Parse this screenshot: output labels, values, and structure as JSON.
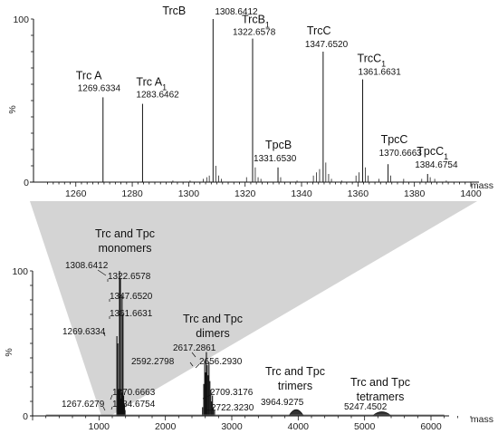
{
  "chart_data": [
    {
      "type": "line",
      "panel": "top",
      "x_unit_label": "mass",
      "y_unit_label": "%",
      "xlim": [
        1245,
        1400
      ],
      "ylim": [
        0,
        100
      ],
      "x_ticks": [
        "1260",
        "1280",
        "1300",
        "1320",
        "1340",
        "1360",
        "1380",
        "1400"
      ],
      "y_ticks": [
        "0",
        "100"
      ],
      "peaks": [
        {
          "name": "Trc A",
          "sub": "",
          "mz": 1269.6334,
          "mz_label": "1269.6334",
          "y": 52
        },
        {
          "name": "Trc A",
          "sub": "1",
          "mz": 1283.6462,
          "mz_label": "1283.6462",
          "y": 48
        },
        {
          "name": "TrcB",
          "sub": "",
          "mz": 1308.6412,
          "mz_label": "1308.6412",
          "y": 100
        },
        {
          "name": "TrcB",
          "sub": "1",
          "mz": 1322.6578,
          "mz_label": "1322.6578",
          "y": 88
        },
        {
          "name": "TpcB",
          "sub": "",
          "mz": 1331.653,
          "mz_label": "1331.6530",
          "y": 9
        },
        {
          "name": "TrcC",
          "sub": "",
          "mz": 1347.652,
          "mz_label": "1347.6520",
          "y": 80
        },
        {
          "name": "TrcC",
          "sub": "1",
          "mz": 1361.6631,
          "mz_label": "1361.6631",
          "y": 63
        },
        {
          "name": "TpcC",
          "sub": "",
          "mz": 1370.6663,
          "mz_label": "1370.6663",
          "y": 11
        },
        {
          "name": "TpcC",
          "sub": "1",
          "mz": 1384.6754,
          "mz_label": "1384.6754",
          "y": 5
        }
      ],
      "minor_peaks": [
        {
          "x": 1305.2,
          "y": 2
        },
        {
          "x": 1306.4,
          "y": 3
        },
        {
          "x": 1307.3,
          "y": 4
        },
        {
          "x": 1309.6,
          "y": 10
        },
        {
          "x": 1310.6,
          "y": 4
        },
        {
          "x": 1311.6,
          "y": 2
        },
        {
          "x": 1320.5,
          "y": 3
        },
        {
          "x": 1323.6,
          "y": 9
        },
        {
          "x": 1324.6,
          "y": 3
        },
        {
          "x": 1325.6,
          "y": 2
        },
        {
          "x": 1332.6,
          "y": 3
        },
        {
          "x": 1344.2,
          "y": 4
        },
        {
          "x": 1345.3,
          "y": 6
        },
        {
          "x": 1346.4,
          "y": 8
        },
        {
          "x": 1348.6,
          "y": 12
        },
        {
          "x": 1349.6,
          "y": 5
        },
        {
          "x": 1350.6,
          "y": 2
        },
        {
          "x": 1359.3,
          "y": 4
        },
        {
          "x": 1360.4,
          "y": 6
        },
        {
          "x": 1362.6,
          "y": 9
        },
        {
          "x": 1363.6,
          "y": 4
        },
        {
          "x": 1371.6,
          "y": 4
        },
        {
          "x": 1367.4,
          "y": 2
        },
        {
          "x": 1376.2,
          "y": 2
        },
        {
          "x": 1382.6,
          "y": 2
        },
        {
          "x": 1385.6,
          "y": 3
        },
        {
          "x": 1387.2,
          "y": 2
        },
        {
          "x": 1294.4,
          "y": 1
        },
        {
          "x": 1300.5,
          "y": 1
        },
        {
          "x": 1338.4,
          "y": 1
        },
        {
          "x": 1354.2,
          "y": 1
        },
        {
          "x": 1391.3,
          "y": 1
        }
      ]
    },
    {
      "type": "line",
      "panel": "bottom",
      "x_unit_label": "mass",
      "y_unit_label": "%",
      "xlim": [
        0,
        6600
      ],
      "ylim": [
        0,
        100
      ],
      "x_ticks": [
        "1000",
        "2000",
        "3000",
        "4000",
        "5000",
        "6000"
      ],
      "y_ticks": [
        "0",
        "100"
      ],
      "peak_labels": [
        {
          "text": "1308.6412",
          "x": 1308.6,
          "y": 100
        },
        {
          "text": "1322.6578",
          "x": 1322.7,
          "y": 95
        },
        {
          "text": "1347.6520",
          "x": 1347.7,
          "y": 83
        },
        {
          "text": "1361.6631",
          "x": 1361.7,
          "y": 70
        },
        {
          "text": "1269.6334",
          "x": 1269.6,
          "y": 55
        },
        {
          "text": "1370.6663",
          "x": 1370.7,
          "y": 14
        },
        {
          "text": "1384.6754",
          "x": 1384.7,
          "y": 8
        },
        {
          "text": "1267.6279",
          "x": 1267.6,
          "y": 6
        },
        {
          "text": "2617.2861",
          "x": 2617.3,
          "y": 44
        },
        {
          "text": "2592.2798",
          "x": 2592.3,
          "y": 38
        },
        {
          "text": "2656.2930",
          "x": 2656.3,
          "y": 37
        },
        {
          "text": "2709.3176",
          "x": 2709.3,
          "y": 14
        },
        {
          "text": "2722.3230",
          "x": 2722.3,
          "y": 6
        },
        {
          "text": "3964.9275",
          "x": 3964.9,
          "y": 6
        },
        {
          "text": "5247.4502",
          "x": 5247.5,
          "y": 3
        }
      ],
      "sticks": [
        {
          "x": 1269.6,
          "y": 55
        },
        {
          "x": 1283.6,
          "y": 50
        },
        {
          "x": 1308.6,
          "y": 100
        },
        {
          "x": 1322.7,
          "y": 95
        },
        {
          "x": 1347.7,
          "y": 83
        },
        {
          "x": 1361.7,
          "y": 70
        },
        {
          "x": 1331.7,
          "y": 12
        },
        {
          "x": 1370.7,
          "y": 14
        },
        {
          "x": 1384.7,
          "y": 8
        },
        {
          "x": 1296,
          "y": 18
        },
        {
          "x": 1316,
          "y": 22
        },
        {
          "x": 1340,
          "y": 15
        },
        {
          "x": 1355,
          "y": 16
        },
        {
          "x": 1392,
          "y": 4
        },
        {
          "x": 2578,
          "y": 22
        },
        {
          "x": 2592.3,
          "y": 38
        },
        {
          "x": 2604,
          "y": 30
        },
        {
          "x": 2617.3,
          "y": 44
        },
        {
          "x": 2630,
          "y": 35
        },
        {
          "x": 2644,
          "y": 28
        },
        {
          "x": 2656.3,
          "y": 37
        },
        {
          "x": 2670,
          "y": 24
        },
        {
          "x": 2684,
          "y": 18
        },
        {
          "x": 2696,
          "y": 10
        },
        {
          "x": 2709.3,
          "y": 14
        },
        {
          "x": 2722.3,
          "y": 6
        },
        {
          "x": 2740,
          "y": 4
        },
        {
          "x": 2560,
          "y": 6
        }
      ],
      "humps": [
        {
          "x0": 3860,
          "x1": 4080,
          "y": 6
        },
        {
          "x0": 5120,
          "x1": 5400,
          "y": 3
        }
      ],
      "group_labels": [
        {
          "lines": [
            "Trc and Tpc",
            "monomers"
          ]
        },
        {
          "lines": [
            "Trc and Tpc",
            "dimers"
          ]
        },
        {
          "lines": [
            "Trc and Tpc",
            "trimers"
          ]
        },
        {
          "lines": [
            "Trc and Tpc",
            "tetramers"
          ]
        }
      ]
    }
  ]
}
